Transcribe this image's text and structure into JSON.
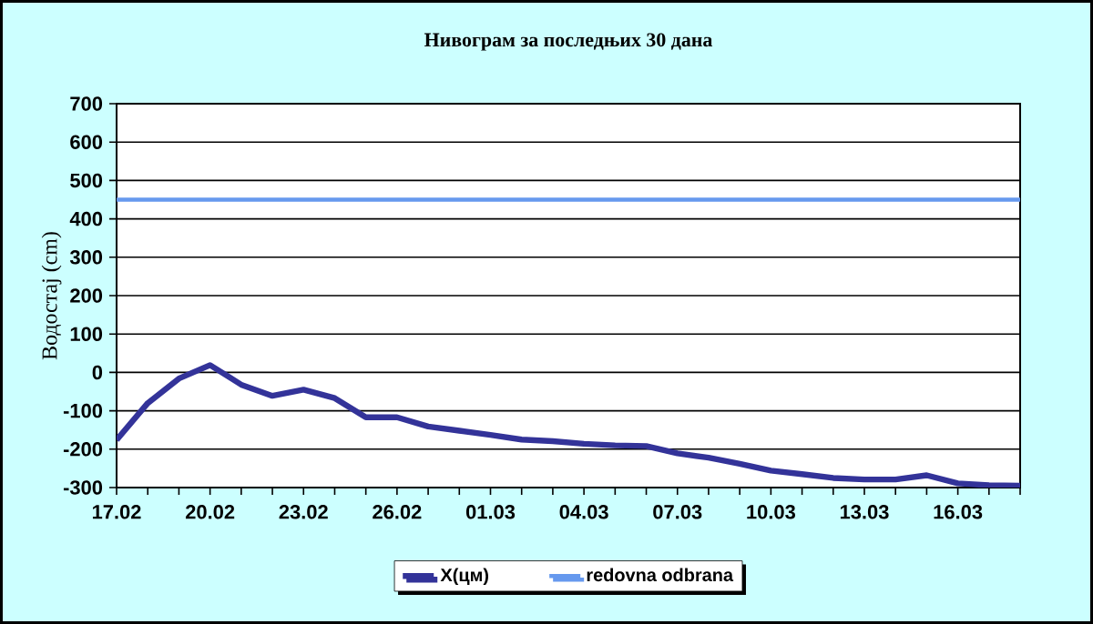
{
  "chart_data": {
    "type": "line",
    "title": "Нивограм за последњих 30 дана",
    "ylabel": "Водостај (cm)",
    "categories": [
      "17.02",
      null,
      null,
      "20.02",
      null,
      null,
      "23.02",
      null,
      null,
      "26.02",
      null,
      null,
      "01.03",
      null,
      null,
      "04.03",
      null,
      null,
      "07.03",
      null,
      null,
      "10.03",
      null,
      null,
      "13.03",
      null,
      null,
      "16.03",
      null,
      null
    ],
    "series": [
      {
        "name": "X(цм)",
        "color": "#333399",
        "values": [
          -176,
          -80,
          -16,
          19,
          -32,
          -61,
          -45,
          -67,
          -117,
          -117,
          -141,
          -152,
          -163,
          -175,
          -179,
          -186,
          -190,
          -192,
          -211,
          -222,
          -238,
          -256,
          -265,
          -275,
          -279,
          -279,
          -268,
          -289,
          -294,
          -295
        ]
      },
      {
        "name": "redovna odbrana",
        "color": "#6699ee",
        "values": [
          450,
          450,
          450,
          450,
          450,
          450,
          450,
          450,
          450,
          450,
          450,
          450,
          450,
          450,
          450,
          450,
          450,
          450,
          450,
          450,
          450,
          450,
          450,
          450,
          450,
          450,
          450,
          450,
          450,
          450
        ]
      }
    ],
    "ylim": [
      -300,
      700
    ],
    "yticks": [
      -300,
      -200,
      -100,
      0,
      100,
      200,
      300,
      400,
      500,
      600,
      700
    ],
    "grid": "y",
    "legend": "bottom",
    "marker": "none",
    "line_style": "solid"
  }
}
